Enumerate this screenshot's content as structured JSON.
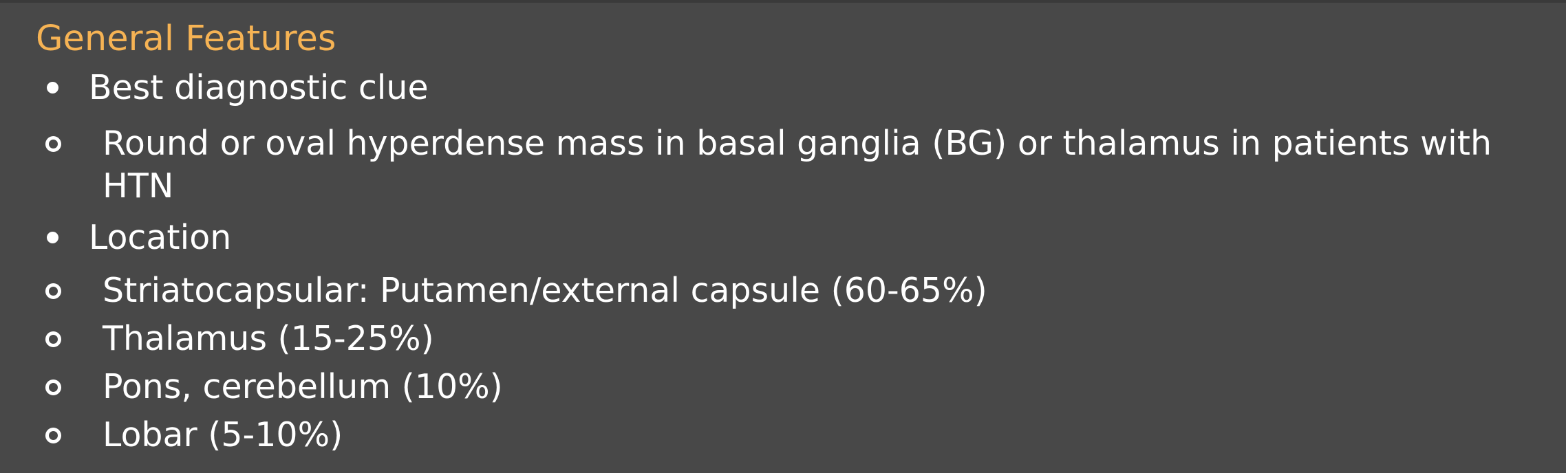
{
  "section": {
    "title": "General Features"
  },
  "items": [
    {
      "label": "Best diagnostic clue",
      "subitems": [
        "Round or oval hyperdense mass in basal ganglia (BG) or thalamus in patients with HTN"
      ]
    },
    {
      "label": "Location",
      "subitems": [
        "Striatocapsular: Putamen/external capsule (60-65%)",
        "Thalamus (15-25%)",
        "Pons, cerebellum (10%)",
        "Lobar (5-10%)"
      ]
    }
  ],
  "colors": {
    "background": "#484848",
    "heading": "#f6b354",
    "text": "#ffffff"
  }
}
